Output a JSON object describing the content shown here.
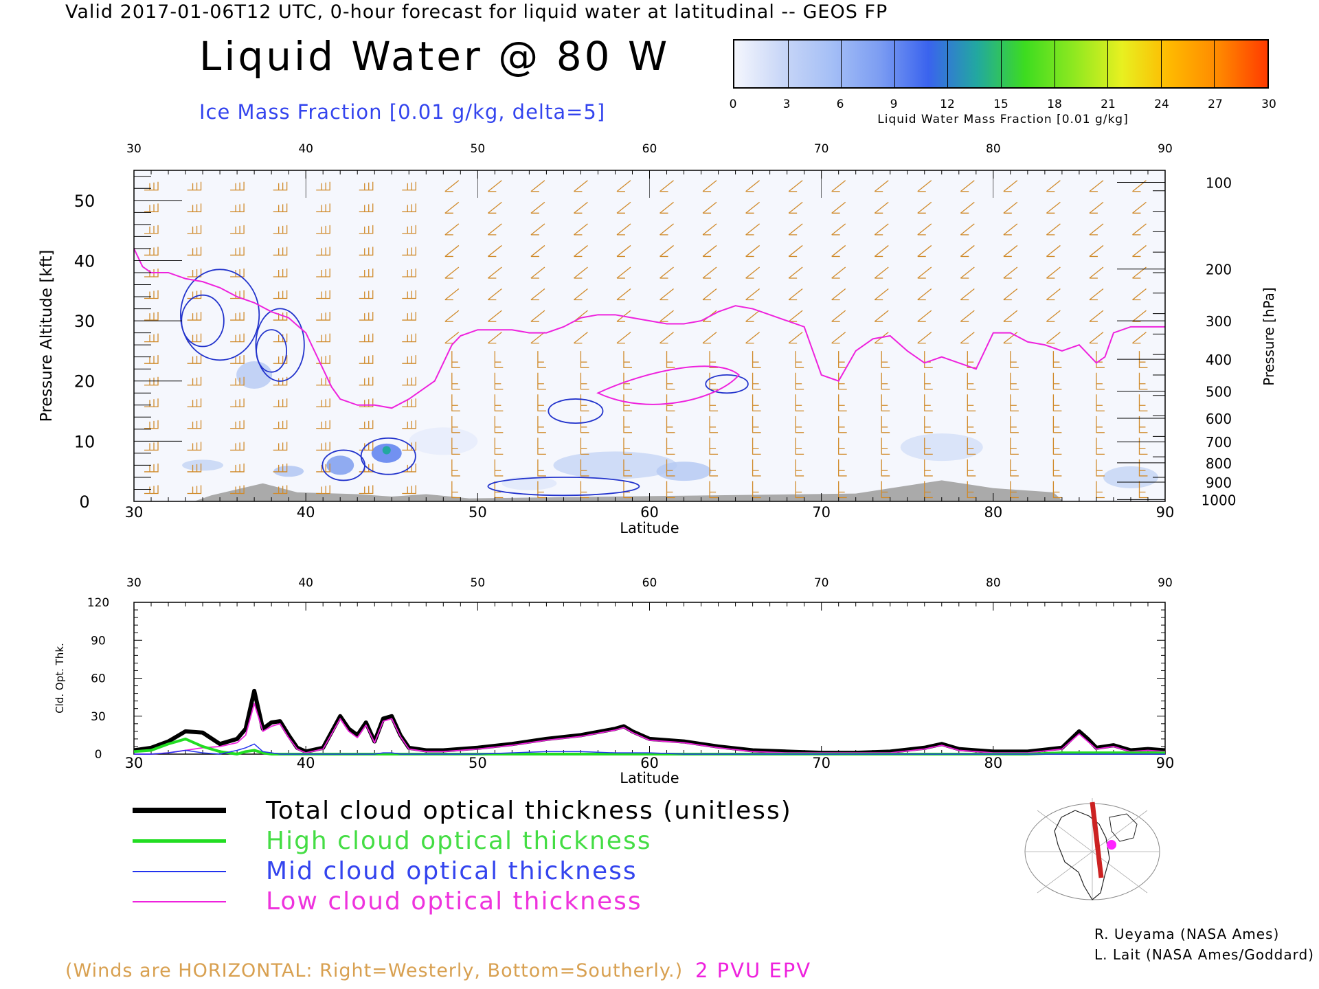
{
  "header": {
    "line": "Valid 2017-01-06T12 UTC, 0-hour forecast for liquid water at latitudinal -- GEOS FP",
    "title": "Liquid Water @ 80 W",
    "ice_label": "Ice Mass Fraction [0.01 g/kg, delta=5]"
  },
  "colorbar": {
    "label": "Liquid Water Mass Fraction [0.01 g/kg]",
    "ticks": [
      "0",
      "3",
      "6",
      "9",
      "12",
      "15",
      "18",
      "21",
      "24",
      "27",
      "30"
    ],
    "colors": [
      "#f4f6fd",
      "#c8d6f7",
      "#a5bff6",
      "#7c9df2",
      "#3a63ee",
      "#22a8a0",
      "#3ddc20",
      "#8ee820",
      "#e8f020",
      "#ffb800",
      "#ff8800",
      "#ff3b00"
    ]
  },
  "footer": {
    "wind_note": "(Winds are HORIZONTAL: Right=Westerly, Bottom=Southerly.)",
    "epv_label": "2 PVU EPV",
    "credit_1": "R. Ueyama (NASA Ames)",
    "credit_2": "L. Lait (NASA Ames/Goddard)"
  },
  "legend": [
    {
      "label": "Total cloud optical thickness (unitless)",
      "color": "#000000",
      "text_color": "#000000"
    },
    {
      "label": "High cloud optical thickness",
      "color": "#22dd22",
      "text_color": "#44dd44"
    },
    {
      "label": "Mid cloud optical thickness",
      "color": "#2233ee",
      "text_color": "#3344ee"
    },
    {
      "label": "Low cloud optical thickness",
      "color": "#ee22dd",
      "text_color": "#ee33dd"
    }
  ],
  "chart_data": [
    {
      "type": "heatmap",
      "title": "Liquid Water @ 80 W",
      "xlabel": "Latitude",
      "ylabel": "Pressure Altitude [kft]",
      "y2label": "Pressure [hPa]",
      "xlim": [
        30,
        90
      ],
      "ylim": [
        0,
        55
      ],
      "x_ticks": [
        30,
        40,
        50,
        60,
        70,
        80,
        90
      ],
      "y_ticks": [
        0,
        10,
        20,
        30,
        40,
        50
      ],
      "pressure_ticks": [
        "100",
        "200",
        "300",
        "400",
        "500",
        "600",
        "700",
        "800",
        "900",
        "1000"
      ],
      "pressure_tick_alt_kft": [
        53,
        38.6,
        30,
        23.6,
        18.3,
        13.8,
        9.9,
        6.4,
        3.2,
        0.3
      ],
      "epv_2pvu_tropopause": {
        "lat": [
          30,
          30.5,
          31,
          32,
          33,
          34,
          35,
          36,
          37,
          38,
          39,
          40,
          41,
          41.5,
          42,
          43,
          44,
          45,
          46,
          47,
          47.5,
          48,
          48.5,
          49,
          50,
          51,
          52,
          53,
          54,
          55,
          56,
          57,
          58,
          59,
          60,
          61,
          62,
          63,
          64,
          65,
          66,
          67,
          68,
          69,
          70,
          71,
          72,
          73,
          74,
          75,
          76,
          77,
          78,
          79,
          80,
          81,
          82,
          83,
          84,
          85,
          86,
          86.5,
          87,
          88,
          89,
          90
        ],
        "alt_kft": [
          42,
          39,
          38,
          38,
          37,
          36.5,
          35.5,
          34,
          33,
          31.5,
          30.5,
          28,
          22,
          19,
          17,
          16,
          16,
          15.5,
          17,
          19,
          20,
          23,
          26,
          27.5,
          28.5,
          28.5,
          28.5,
          28,
          28,
          29,
          30.5,
          31,
          31,
          30.5,
          30,
          29.5,
          29.5,
          30,
          31.5,
          32.5,
          32,
          31,
          30,
          29,
          21,
          20,
          25,
          27,
          27.5,
          25,
          23,
          24,
          23,
          22,
          28,
          28,
          26.5,
          26,
          25,
          26,
          23,
          24,
          28,
          29,
          29,
          29
        ]
      },
      "wind_note": "Winds are HORIZONTAL: Right=Westerly, Bottom=Southerly"
    },
    {
      "type": "line",
      "xlabel": "Latitude",
      "ylabel": "Cld. Opt. Thk.",
      "xlim": [
        30,
        90
      ],
      "ylim": [
        0,
        120
      ],
      "x_ticks": [
        30,
        40,
        50,
        60,
        70,
        80,
        90
      ],
      "y_ticks": [
        0,
        30,
        60,
        90,
        120
      ],
      "x": [
        30,
        31,
        32,
        33,
        34,
        35,
        36,
        36.5,
        37,
        37.5,
        38,
        38.5,
        39,
        39.5,
        40,
        41,
        42,
        42.5,
        43,
        43.5,
        44,
        44.5,
        45,
        45.5,
        46,
        47,
        48,
        50,
        52,
        54,
        56,
        58,
        58.5,
        59,
        60,
        62,
        64,
        66,
        68,
        70,
        72,
        74,
        76,
        77,
        78,
        80,
        82,
        84,
        85,
        85.5,
        86,
        87,
        88,
        89,
        90
      ],
      "series": [
        {
          "name": "Total cloud optical thickness (unitless)",
          "color": "#000000",
          "values": [
            3,
            5,
            10,
            18,
            17,
            8,
            12,
            20,
            50,
            20,
            25,
            26,
            15,
            5,
            2,
            5,
            30,
            20,
            15,
            25,
            10,
            28,
            30,
            15,
            5,
            3,
            3,
            5,
            8,
            12,
            15,
            20,
            22,
            18,
            12,
            10,
            6,
            3,
            2,
            1,
            1,
            2,
            5,
            8,
            4,
            2,
            2,
            5,
            18,
            12,
            5,
            7,
            3,
            4,
            3
          ]
        },
        {
          "name": "High cloud optical thickness",
          "color": "#22dd22",
          "values": [
            2,
            3,
            8,
            12,
            6,
            2,
            0,
            2,
            3,
            1,
            0,
            0,
            0,
            0,
            0,
            0,
            0,
            0,
            0,
            0,
            0,
            0,
            0,
            0,
            0,
            0,
            0,
            0,
            0,
            0,
            0,
            0,
            0,
            0,
            0,
            0,
            0,
            0,
            0,
            0,
            0,
            0,
            0,
            0,
            0,
            0,
            0,
            1,
            1,
            1,
            1,
            1,
            1,
            1,
            1
          ]
        },
        {
          "name": "Mid cloud optical thickness",
          "color": "#2233ee",
          "values": [
            0,
            0,
            1,
            3,
            1,
            0,
            3,
            5,
            8,
            2,
            1,
            0,
            0,
            0,
            0,
            0,
            0,
            0,
            0,
            0,
            0,
            1,
            1,
            0,
            0,
            0,
            0,
            0,
            1,
            2,
            2,
            1,
            1,
            1,
            1,
            0,
            0,
            0,
            0,
            0,
            0,
            0,
            0,
            0,
            0,
            0,
            0,
            0,
            0,
            0,
            0,
            0,
            0,
            0,
            0
          ]
        },
        {
          "name": "Low cloud optical thickness",
          "color": "#ee22dd",
          "values": [
            0,
            0,
            1,
            3,
            5,
            6,
            9,
            15,
            40,
            18,
            22,
            24,
            13,
            4,
            1,
            4,
            28,
            18,
            13,
            23,
            9,
            26,
            28,
            14,
            4,
            2,
            2,
            4,
            7,
            11,
            14,
            19,
            21,
            17,
            11,
            9,
            5,
            2,
            1,
            1,
            1,
            1,
            4,
            7,
            3,
            1,
            1,
            4,
            16,
            10,
            4,
            6,
            2,
            3,
            2
          ]
        }
      ]
    }
  ]
}
